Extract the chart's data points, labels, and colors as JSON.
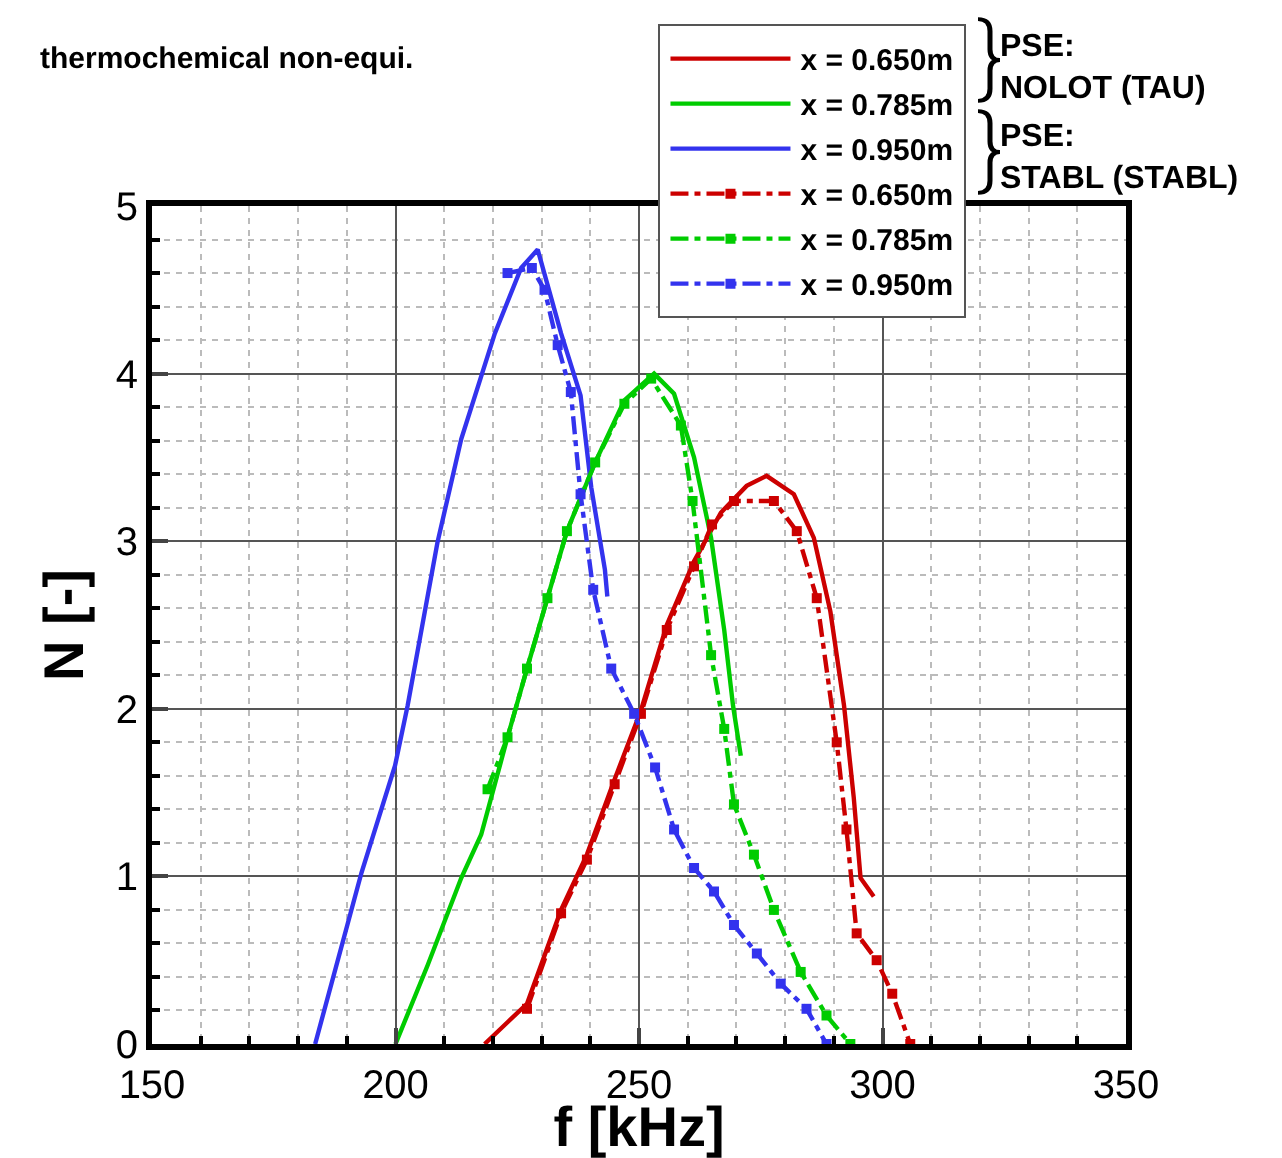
{
  "chart_data": {
    "type": "line",
    "annotations": [
      "thermochemical non-equi.",
      "PSE:\nNOLOT (TAU)",
      "PSE:\nSTABL (STABL)"
    ],
    "xlabel": "f [kHz]",
    "ylabel": "N [-]",
    "xlim": [
      150,
      350
    ],
    "xticks": [
      150,
      200,
      250,
      300,
      350
    ],
    "ylim": [
      0,
      5
    ],
    "yticks": [
      0,
      1,
      2,
      3,
      4,
      5
    ],
    "grid": true,
    "legend": "top right",
    "series": [
      {
        "name": "x = 0.650m",
        "color": "#cc0000",
        "line_style": "solid",
        "marker": "none",
        "x": [
          218.3,
          223,
          227,
          234,
          239.3,
          245,
          250.4,
          255.7,
          261.3,
          266.8,
          272.1,
          276.2,
          281.8,
          285.9,
          289.3,
          292.1,
          294.1,
          295.5,
          298.2
        ],
        "values": [
          0,
          0.13,
          0.24,
          0.8,
          1.13,
          1.58,
          1.99,
          2.5,
          2.88,
          3.17,
          3.33,
          3.39,
          3.28,
          3.02,
          2.58,
          2.02,
          1.47,
          0.99,
          0.88
        ]
      },
      {
        "name": "x = 0.785m",
        "color": "#00cc00",
        "line_style": "solid",
        "marker": "none",
        "x": [
          200,
          206.6,
          213.5,
          217.6,
          223,
          227,
          231.2,
          235.2,
          241,
          247,
          253.1,
          257.2,
          261.3,
          264.8,
          267.5,
          269.3,
          270.9
        ],
        "values": [
          0,
          0.47,
          0.99,
          1.25,
          1.83,
          2.24,
          2.66,
          3.06,
          3.47,
          3.84,
          4.0,
          3.88,
          3.5,
          3.02,
          2.47,
          2.02,
          1.72
        ]
      },
      {
        "name": "x = 0.950m",
        "color": "#3333ee",
        "line_style": "solid",
        "marker": "none",
        "x": [
          183.5,
          193,
          199.9,
          202.5,
          208.6,
          213.5,
          220.4,
          225.8,
          229.2,
          234,
          238,
          240.2,
          243,
          243.5
        ],
        "values": [
          0,
          1.02,
          1.66,
          2.02,
          2.99,
          3.61,
          4.24,
          4.63,
          4.74,
          4.24,
          3.87,
          3.32,
          2.83,
          2.67
        ]
      },
      {
        "name": "x = 0.650m",
        "color": "#cc0000",
        "line_style": "dashdot",
        "marker": "square",
        "x": [
          227,
          234,
          239.3,
          245,
          250.4,
          255.7,
          261.3,
          265,
          269.5,
          277.7,
          282.4,
          286.5,
          290.6,
          292.6,
          294.7,
          298.8,
          302,
          305.7
        ],
        "values": [
          0.21,
          0.78,
          1.1,
          1.55,
          1.97,
          2.47,
          2.85,
          3.1,
          3.24,
          3.24,
          3.06,
          2.66,
          1.8,
          1.28,
          0.66,
          0.5,
          0.3,
          0
        ]
      },
      {
        "name": "x = 0.785m",
        "color": "#00cc00",
        "line_style": "dashdot",
        "marker": "square",
        "x": [
          218.9,
          223,
          227,
          231.2,
          235.2,
          241,
          247,
          252.5,
          258.6,
          261,
          264.8,
          267.5,
          269.5,
          273.6,
          277.7,
          283.2,
          288.5,
          293.4
        ],
        "values": [
          1.52,
          1.83,
          2.24,
          2.66,
          3.06,
          3.47,
          3.82,
          3.97,
          3.69,
          3.24,
          2.32,
          1.88,
          1.43,
          1.13,
          0.8,
          0.43,
          0.17,
          0
        ]
      },
      {
        "name": "x = 0.950m",
        "color": "#3333ee",
        "line_style": "dashdot",
        "marker": "square",
        "x": [
          223,
          228,
          230.6,
          233.3,
          236,
          238,
          240.6,
          244.3,
          249,
          253.3,
          257.2,
          261.3,
          265.4,
          269.5,
          274.2,
          279.1,
          284.4,
          288.5
        ],
        "values": [
          4.6,
          4.63,
          4.5,
          4.17,
          3.89,
          3.28,
          2.71,
          2.24,
          1.97,
          1.65,
          1.28,
          1.05,
          0.91,
          0.71,
          0.54,
          0.36,
          0.21,
          0
        ]
      }
    ]
  }
}
